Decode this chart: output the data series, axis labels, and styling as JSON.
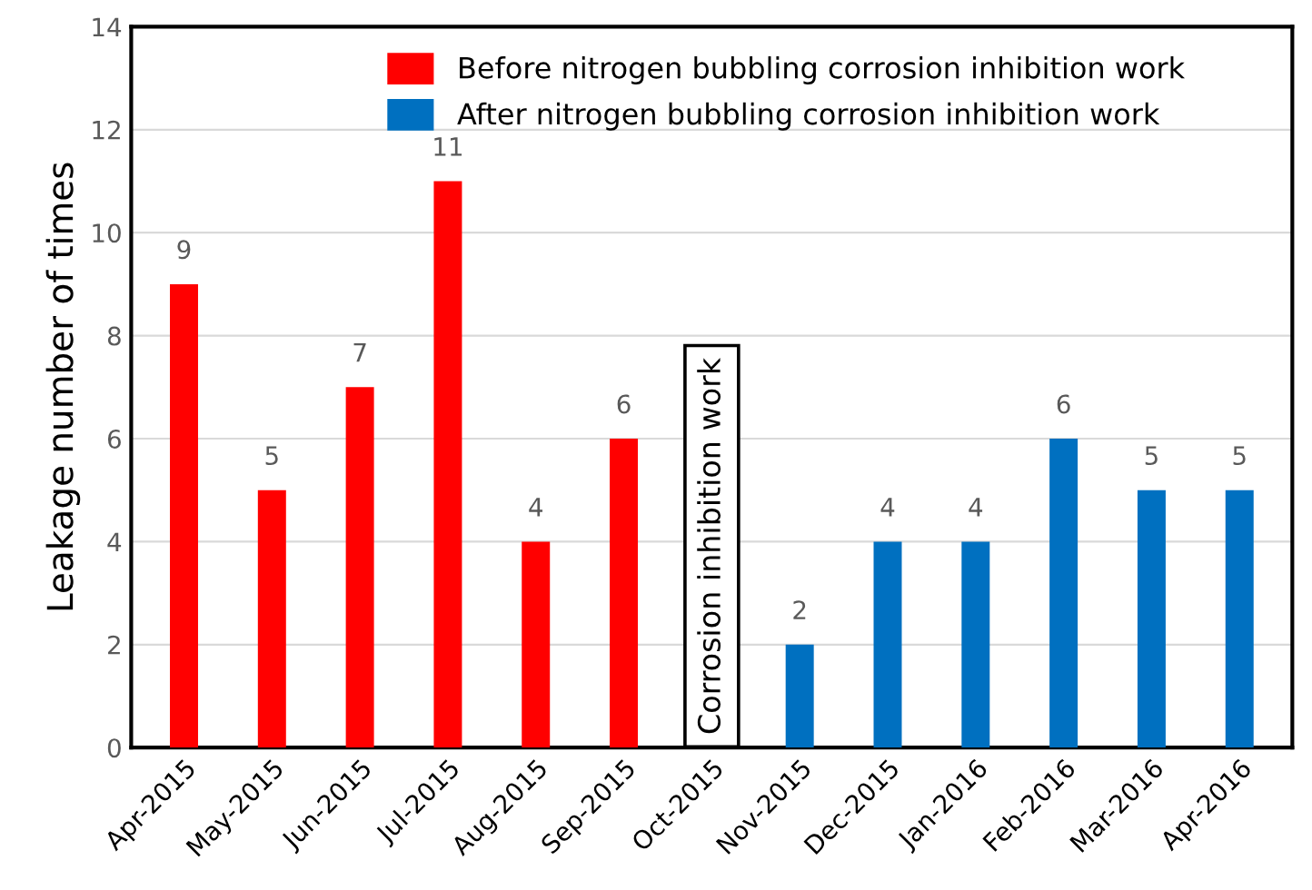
{
  "chart_data": {
    "type": "bar",
    "ylabel": "Leakage number of times",
    "categories": [
      "Apr-2015",
      "May-2015",
      "Jun-2015",
      "Jul-2015",
      "Aug-2015",
      "Sep-2015",
      "Oct-2015",
      "Nov-2015",
      "Dec-2015",
      "Jan-2016",
      "Feb-2016",
      "Mar-2016",
      "Apr-2016"
    ],
    "series": [
      {
        "name": "Before nitrogen bubbling corrosion inhibition work",
        "color": "#ff0000",
        "values": [
          9,
          5,
          7,
          11,
          4,
          6,
          null,
          null,
          null,
          null,
          null,
          null,
          null
        ]
      },
      {
        "name": "After nitrogen bubbling corrosion inhibition work",
        "color": "#0070c0",
        "values": [
          null,
          null,
          null,
          null,
          null,
          null,
          null,
          2,
          4,
          4,
          6,
          5,
          5
        ]
      }
    ],
    "ylim": [
      0,
      14
    ],
    "yticks": [
      0,
      2,
      4,
      6,
      8,
      10,
      12,
      14
    ],
    "grid": "y",
    "legend": "top right",
    "data_labels": true,
    "annotations": [
      "Corrosion inhibition work"
    ]
  }
}
